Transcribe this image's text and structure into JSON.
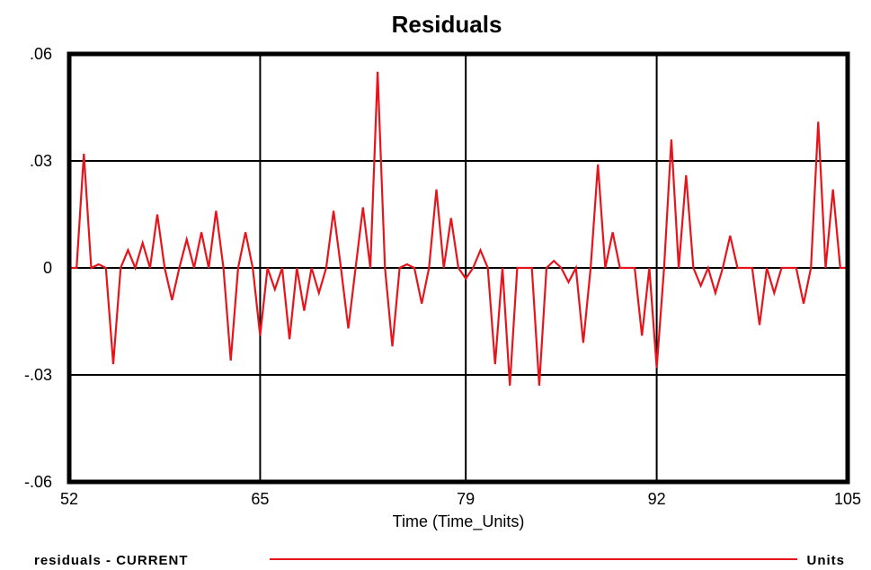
{
  "chart_data": {
    "type": "line",
    "title": "Residuals",
    "xlabel": "Time (Time_Units)",
    "ylabel": "",
    "xlim": [
      52,
      105
    ],
    "ylim": [
      -0.06,
      0.06
    ],
    "x_ticks": [
      52,
      65,
      79,
      92,
      105
    ],
    "x_tick_labels": [
      "52",
      "65",
      "79",
      "92",
      "105"
    ],
    "y_ticks": [
      0.06,
      0.03,
      0,
      -0.03,
      -0.06
    ],
    "y_tick_labels": [
      ".06",
      ".03",
      "0",
      "-.03",
      "-.06"
    ],
    "grid": true,
    "legend_placement": "bottom",
    "series": [
      {
        "name": "residuals - CURRENT",
        "unit": "Units",
        "color": "#e8141c",
        "x": [
          52,
          52.5,
          53,
          53.5,
          54,
          54.5,
          55,
          55.5,
          56,
          56.5,
          57,
          57.5,
          58,
          58.5,
          59,
          59.5,
          60,
          60.5,
          61,
          61.5,
          62,
          62.5,
          63,
          63.5,
          64,
          64.5,
          65,
          65.5,
          66,
          66.5,
          67,
          67.5,
          68,
          68.5,
          69,
          69.5,
          70,
          70.5,
          71,
          71.5,
          72,
          72.5,
          73,
          73.5,
          74,
          74.5,
          75,
          75.5,
          76,
          76.5,
          77,
          77.5,
          78,
          78.5,
          79,
          79.5,
          80,
          80.5,
          81,
          81.5,
          82,
          82.5,
          83,
          83.5,
          84,
          84.5,
          85,
          85.5,
          86,
          86.5,
          87,
          87.5,
          88,
          88.5,
          89,
          89.5,
          90,
          90.5,
          91,
          91.5,
          92,
          92.5,
          93,
          93.5,
          94,
          94.5,
          95,
          95.5,
          96,
          96.5,
          97,
          97.5,
          98,
          98.5,
          99,
          99.5,
          100,
          100.5,
          101,
          101.5,
          102,
          102.5,
          103,
          103.5,
          104,
          104.5,
          105
        ],
        "y": [
          0,
          0,
          0.032,
          0,
          0.001,
          0,
          -0.027,
          0,
          0.005,
          0,
          0.007,
          0,
          0.015,
          0,
          -0.009,
          0,
          0.008,
          0,
          0.01,
          0,
          0.016,
          0,
          -0.026,
          0,
          0.01,
          0,
          -0.019,
          0,
          -0.006,
          0,
          -0.02,
          0,
          -0.012,
          0,
          -0.007,
          0,
          0.016,
          0,
          -0.017,
          0,
          0.017,
          0,
          0.055,
          0,
          -0.022,
          0,
          0.001,
          0,
          -0.01,
          0,
          0.022,
          0,
          0.014,
          0,
          -0.003,
          0,
          0.005,
          0,
          -0.027,
          0,
          -0.033,
          0,
          0,
          0,
          -0.033,
          0,
          0.002,
          0,
          -0.004,
          0,
          -0.021,
          0,
          0.029,
          0,
          0.01,
          0,
          0,
          0,
          -0.019,
          0,
          -0.028,
          0,
          0.036,
          0,
          0.026,
          0,
          -0.005,
          0,
          -0.007,
          0,
          0.009,
          0,
          0,
          0,
          -0.016,
          0,
          -0.007,
          0,
          0,
          0,
          -0.01,
          0,
          0.041,
          0,
          0.022,
          0,
          0
        ]
      }
    ]
  }
}
